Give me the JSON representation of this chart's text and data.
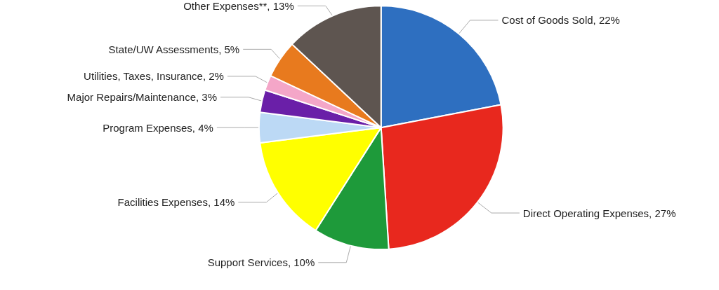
{
  "chart_data": {
    "type": "pie",
    "categories": [
      "Cost of Goods Sold",
      "Direct Operating Expenses",
      "Support Services",
      "Facilities Expenses",
      "Program Expenses",
      "Major Repairs/Maintenance",
      "Utilities, Taxes, Insurance",
      "State/UW Assessments",
      "Other Expenses**"
    ],
    "values": [
      22,
      27,
      10,
      14,
      4,
      3,
      2,
      5,
      13
    ],
    "value_labels": [
      "22%",
      "27%",
      "10%",
      "14%",
      "4%",
      "3%",
      "2%",
      "5%",
      "13%"
    ],
    "colors": [
      "#2e6fc0",
      "#e8281e",
      "#1e9a3a",
      "#ffff00",
      "#bcd9f5",
      "#6a1fa8",
      "#f4a6c8",
      "#e87a1e",
      "#5e5550"
    ],
    "legend": false
  }
}
